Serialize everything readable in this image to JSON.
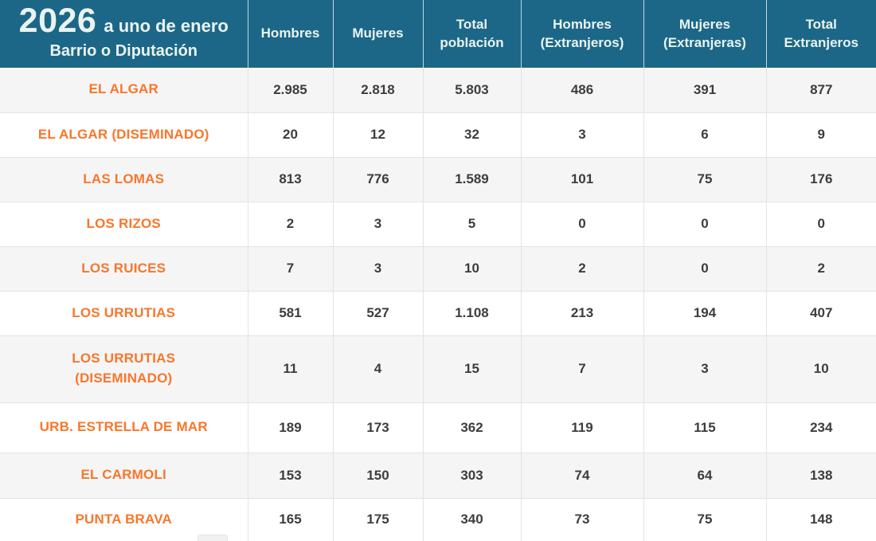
{
  "table": {
    "title_year": "2026",
    "title_suffix": "a uno de enero",
    "first_col_header": "Barrio o Diputación",
    "columns": [
      {
        "line1": "Hombres",
        "line2": ""
      },
      {
        "line1": "Mujeres",
        "line2": ""
      },
      {
        "line1": "Total",
        "line2": "población"
      },
      {
        "line1": "Hombres",
        "line2": "(Extranjeros)"
      },
      {
        "line1": "Mujeres",
        "line2": "(Extranjeras)"
      },
      {
        "line1": "Total",
        "line2": "Extranjeros"
      }
    ],
    "rows": [
      {
        "name": "EL ALGAR",
        "hombres": "2.985",
        "mujeres": "2.818",
        "total": "5.803",
        "hombres_ext": "486",
        "mujeres_ext": "391",
        "total_ext": "877"
      },
      {
        "name": "EL ALGAR (DISEMINADO)",
        "hombres": "20",
        "mujeres": "12",
        "total": "32",
        "hombres_ext": "3",
        "mujeres_ext": "6",
        "total_ext": "9"
      },
      {
        "name": "LAS LOMAS",
        "hombres": "813",
        "mujeres": "776",
        "total": "1.589",
        "hombres_ext": "101",
        "mujeres_ext": "75",
        "total_ext": "176"
      },
      {
        "name": "LOS RIZOS",
        "hombres": "2",
        "mujeres": "3",
        "total": "5",
        "hombres_ext": "0",
        "mujeres_ext": "0",
        "total_ext": "0"
      },
      {
        "name": "LOS RUICES",
        "hombres": "7",
        "mujeres": "3",
        "total": "10",
        "hombres_ext": "2",
        "mujeres_ext": "0",
        "total_ext": "2"
      },
      {
        "name": "LOS URRUTIAS",
        "hombres": "581",
        "mujeres": "527",
        "total": "1.108",
        "hombres_ext": "213",
        "mujeres_ext": "194",
        "total_ext": "407"
      },
      {
        "name": "LOS URRUTIAS (DISEMINADO)",
        "hombres": "11",
        "mujeres": "4",
        "total": "15",
        "hombres_ext": "7",
        "mujeres_ext": "3",
        "total_ext": "10"
      },
      {
        "name": "URB. ESTRELLA DE MAR",
        "hombres": "189",
        "mujeres": "173",
        "total": "362",
        "hombres_ext": "119",
        "mujeres_ext": "115",
        "total_ext": "234"
      },
      {
        "name": "EL CARMOLI",
        "hombres": "153",
        "mujeres": "150",
        "total": "303",
        "hombres_ext": "74",
        "mujeres_ext": "64",
        "total_ext": "138"
      },
      {
        "name": "PUNTA BRAVA",
        "hombres": "165",
        "mujeres": "175",
        "total": "340",
        "hombres_ext": "73",
        "mujeres_ext": "75",
        "total_ext": "148"
      }
    ],
    "colors": {
      "header_bg": "#1c6787",
      "header_text": "#eaf3f0",
      "name_text": "#f9762a",
      "value_text": "#3d3d3d",
      "stripe_bg": "#f5f5f6",
      "grid_line": "#e3e3e3"
    }
  }
}
